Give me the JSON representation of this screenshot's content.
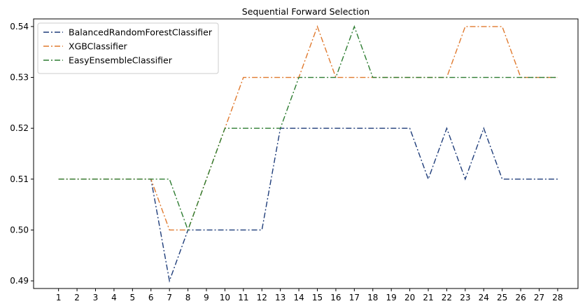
{
  "chart_data": {
    "type": "line",
    "title": "Sequential Forward  Selection",
    "xlabel": "",
    "ylabel": "",
    "x": [
      1,
      2,
      3,
      4,
      5,
      6,
      7,
      8,
      9,
      10,
      11,
      12,
      13,
      14,
      15,
      16,
      17,
      18,
      19,
      20,
      21,
      22,
      23,
      24,
      25,
      26,
      27,
      28
    ],
    "x_tick_labels": [
      "1",
      "2",
      "3",
      "4",
      "5",
      "6",
      "7",
      "8",
      "9",
      "10",
      "11",
      "12",
      "13",
      "14",
      "15",
      "16",
      "17",
      "18",
      "19",
      "20",
      "21",
      "22",
      "23",
      "24",
      "25",
      "26",
      "27",
      "28"
    ],
    "y_ticks": [
      0.49,
      0.5,
      0.51,
      0.52,
      0.53,
      0.54
    ],
    "y_tick_labels": [
      "0.49",
      "0.50",
      "0.51",
      "0.52",
      "0.53",
      "0.54"
    ],
    "xlim": [
      -0.35,
      29.1
    ],
    "ylim": [
      0.4885,
      0.5415
    ],
    "grid": false,
    "legend_position": "top-left",
    "series": [
      {
        "name": "BalancedRandomForestClassifier",
        "color": "#1f3d7a",
        "linestyle": "dash-dot",
        "values": [
          0.51,
          0.51,
          0.51,
          0.51,
          0.51,
          0.51,
          0.49,
          0.5,
          0.5,
          0.5,
          0.5,
          0.5,
          0.52,
          0.52,
          0.52,
          0.52,
          0.52,
          0.52,
          0.52,
          0.52,
          0.51,
          0.52,
          0.51,
          0.52,
          0.51,
          0.51,
          0.51,
          0.51
        ]
      },
      {
        "name": "XGBClassifier",
        "color": "#e07a2f",
        "linestyle": "dash-dot",
        "values": [
          0.51,
          0.51,
          0.51,
          0.51,
          0.51,
          0.51,
          0.5,
          0.5,
          0.51,
          0.52,
          0.53,
          0.53,
          0.53,
          0.53,
          0.54,
          0.53,
          0.53,
          0.53,
          0.53,
          0.53,
          0.53,
          0.53,
          0.54,
          0.54,
          0.54,
          0.53,
          0.53,
          0.53
        ]
      },
      {
        "name": "EasyEnsembleClassifier",
        "color": "#2e7d32",
        "linestyle": "dash-dot",
        "values": [
          0.51,
          0.51,
          0.51,
          0.51,
          0.51,
          0.51,
          0.51,
          0.5,
          0.51,
          0.52,
          0.52,
          0.52,
          0.52,
          0.53,
          0.53,
          0.53,
          0.54,
          0.53,
          0.53,
          0.53,
          0.53,
          0.53,
          0.53,
          0.53,
          0.53,
          0.53,
          0.53,
          0.53
        ]
      }
    ]
  }
}
